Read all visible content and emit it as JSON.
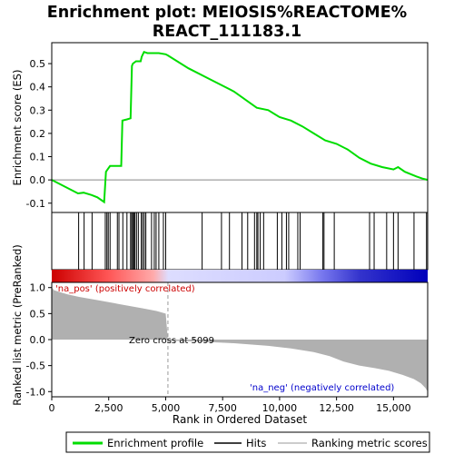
{
  "title_line1": "Enrichment plot: MEIOSIS%REACTOME%",
  "title_line2": "REACT_111183.1",
  "legend": {
    "enrichment_profile": "Enrichment profile",
    "hits": "Hits",
    "ranking_metric_scores": "Ranking metric scores"
  },
  "annotations": {
    "na_pos": "'na_pos' (positively correlated)",
    "na_neg": "'na_neg' (negatively correlated)",
    "zero_cross": "Zero cross at 5099"
  },
  "colors": {
    "profile": "#00dd00",
    "hit": "#000000",
    "metric_fill": "#b0b0b0",
    "pos_text": "#cc0000",
    "neg_text": "#0000cc"
  },
  "chart_data": {
    "type": "line",
    "n_genes": 16500,
    "zero_cross": 5099,
    "es_panel": {
      "ylabel": "Enrichment score (ES)",
      "ylim": [
        -0.14,
        0.59
      ],
      "yticks": [
        -0.1,
        0.0,
        0.1,
        0.2,
        0.3,
        0.4,
        0.5
      ],
      "ytick_labels": [
        "-0.1",
        "0.0",
        "0.1",
        "0.2",
        "0.3",
        "0.4",
        "0.5"
      ],
      "profile": [
        [
          0,
          0.0
        ],
        [
          1150,
          -0.058
        ],
        [
          1400,
          -0.055
        ],
        [
          1750,
          -0.065
        ],
        [
          2000,
          -0.075
        ],
        [
          2300,
          -0.095
        ],
        [
          2380,
          0.035
        ],
        [
          2450,
          0.045
        ],
        [
          2560,
          0.06
        ],
        [
          2850,
          0.06
        ],
        [
          3050,
          0.06
        ],
        [
          3100,
          0.255
        ],
        [
          3300,
          0.26
        ],
        [
          3460,
          0.265
        ],
        [
          3520,
          0.49
        ],
        [
          3560,
          0.5
        ],
        [
          3700,
          0.51
        ],
        [
          3900,
          0.51
        ],
        [
          3950,
          0.53
        ],
        [
          4050,
          0.55
        ],
        [
          4200,
          0.545
        ],
        [
          4700,
          0.545
        ],
        [
          5000,
          0.54
        ],
        [
          5100,
          0.535
        ],
        [
          6000,
          0.48
        ],
        [
          7000,
          0.43
        ],
        [
          8000,
          0.38
        ],
        [
          9000,
          0.31
        ],
        [
          9500,
          0.3
        ],
        [
          10000,
          0.27
        ],
        [
          10500,
          0.255
        ],
        [
          11000,
          0.23
        ],
        [
          11500,
          0.2
        ],
        [
          12000,
          0.17
        ],
        [
          12500,
          0.155
        ],
        [
          13000,
          0.13
        ],
        [
          13500,
          0.095
        ],
        [
          14000,
          0.07
        ],
        [
          14500,
          0.055
        ],
        [
          15000,
          0.045
        ],
        [
          15200,
          0.055
        ],
        [
          15500,
          0.035
        ],
        [
          16000,
          0.015
        ],
        [
          16300,
          0.005
        ],
        [
          16500,
          0.0
        ]
      ]
    },
    "hits": [
      1180,
      1420,
      1770,
      2350,
      2420,
      2480,
      2560,
      2880,
      2950,
      3120,
      3300,
      3460,
      3510,
      3560,
      3600,
      3650,
      3720,
      3800,
      3930,
      3990,
      4060,
      4130,
      4380,
      4500,
      4580,
      4700,
      4900,
      5000,
      6600,
      7450,
      7800,
      8350,
      8600,
      8900,
      9000,
      9050,
      9150,
      9300,
      9900,
      10100,
      10300,
      10400,
      10800,
      10900,
      11900,
      11950,
      12400,
      13950,
      14150,
      14700,
      15000,
      15200,
      15900,
      16450
    ],
    "metric_panel": {
      "ylabel": "Ranked list metric (PreRanked)",
      "ylim": [
        -1.1,
        1.1
      ],
      "yticks": [
        -1.0,
        -0.5,
        0.0,
        0.5,
        1.0
      ],
      "ytick_labels": [
        "-1.0",
        "-0.5",
        "0.0",
        "0.5",
        "1.0"
      ],
      "xlabel": "Rank in Ordered Dataset",
      "xticks": [
        0,
        2500,
        5000,
        7500,
        10000,
        12500,
        15000
      ],
      "xtick_labels": [
        "0",
        "2,500",
        "5,000",
        "7,500",
        "10,000",
        "12,500",
        "15,000"
      ],
      "curve": [
        [
          0,
          1.0
        ],
        [
          100,
          0.95
        ],
        [
          300,
          0.92
        ],
        [
          700,
          0.87
        ],
        [
          1200,
          0.82
        ],
        [
          2000,
          0.76
        ],
        [
          3000,
          0.68
        ],
        [
          4000,
          0.6
        ],
        [
          4600,
          0.55
        ],
        [
          5000,
          0.5
        ],
        [
          5099,
          0.0
        ],
        [
          5200,
          -0.02
        ],
        [
          6500,
          -0.04
        ],
        [
          8000,
          -0.07
        ],
        [
          9500,
          -0.12
        ],
        [
          10500,
          -0.17
        ],
        [
          11500,
          -0.24
        ],
        [
          12200,
          -0.32
        ],
        [
          12800,
          -0.42
        ],
        [
          13500,
          -0.5
        ],
        [
          14200,
          -0.55
        ],
        [
          14800,
          -0.6
        ],
        [
          15400,
          -0.68
        ],
        [
          15900,
          -0.76
        ],
        [
          16200,
          -0.84
        ],
        [
          16400,
          -0.93
        ],
        [
          16500,
          -1.0
        ]
      ]
    }
  }
}
